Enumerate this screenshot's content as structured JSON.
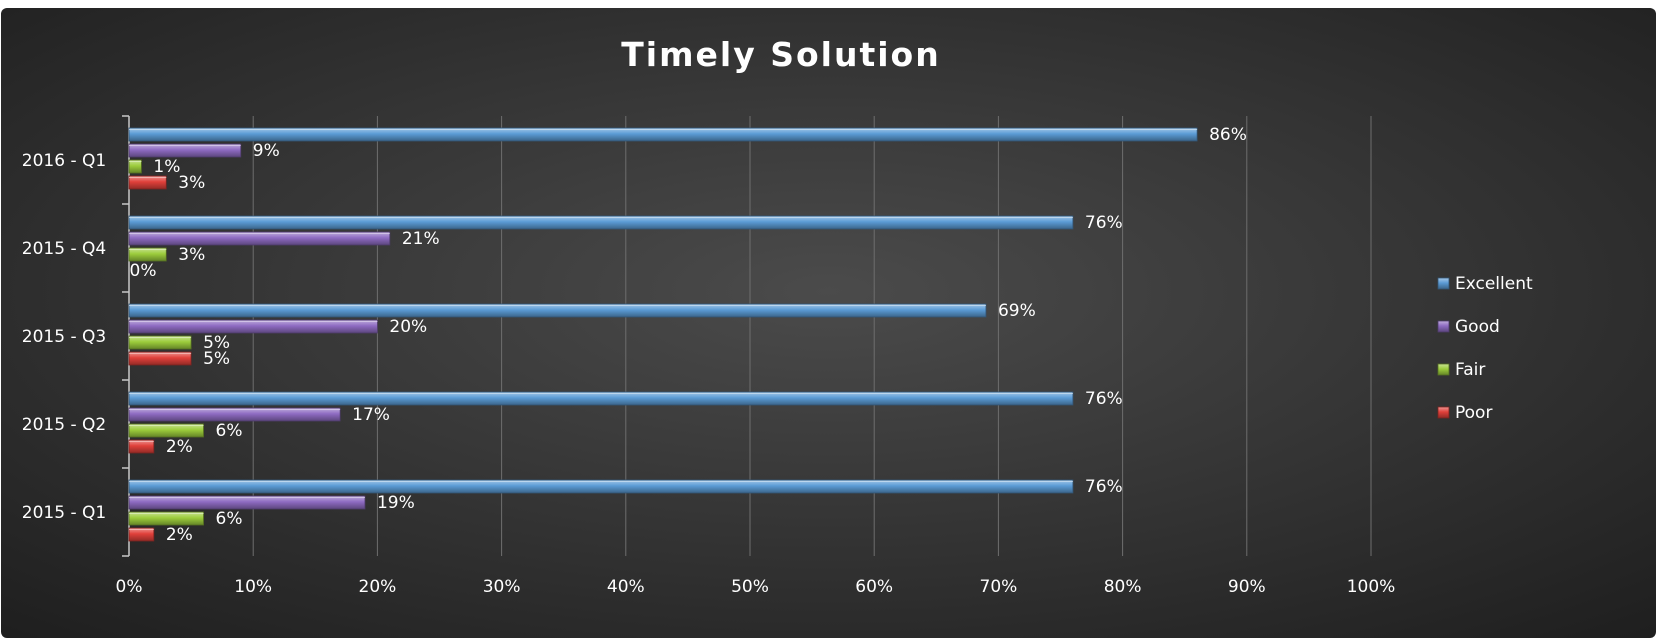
{
  "chart_data": {
    "type": "bar",
    "orientation": "horizontal",
    "title": "Timely Solution",
    "categories": [
      "2016 - Q1",
      "2015 - Q4",
      "2015 - Q3",
      "2015 - Q2",
      "2015 - Q1"
    ],
    "series": [
      {
        "name": "Excellent",
        "values": [
          86,
          76,
          69,
          76,
          76
        ],
        "color": "#5b9bd5"
      },
      {
        "name": "Good",
        "values": [
          9,
          21,
          20,
          17,
          19
        ],
        "color": "#8e6bc2"
      },
      {
        "name": "Fair",
        "values": [
          1,
          3,
          5,
          6,
          6
        ],
        "color": "#9ccc3c"
      },
      {
        "name": "Poor",
        "values": [
          3,
          0,
          5,
          2,
          2
        ],
        "color": "#e0403a"
      }
    ],
    "data_labels": [
      [
        "86%",
        "9%",
        "1%",
        "3%"
      ],
      [
        "76%",
        "21%",
        "3%",
        "0%"
      ],
      [
        "69%",
        "20%",
        "5%",
        "5%"
      ],
      [
        "76%",
        "17%",
        "6%",
        "2%"
      ],
      [
        "76%",
        "19%",
        "6%",
        "2%"
      ]
    ],
    "xticks": [
      "0%",
      "10%",
      "20%",
      "30%",
      "40%",
      "50%",
      "60%",
      "70%",
      "80%",
      "90%",
      "100%"
    ],
    "xlim": [
      0,
      100
    ],
    "grid": true,
    "legend": "right",
    "xlabel": "",
    "ylabel": ""
  },
  "colors": {
    "background_center": "#4b4b4b",
    "background_edge": "#1e1e1e",
    "text": "#ffffff",
    "grid": "#6e6e6e",
    "axis": "#c8c8c8"
  }
}
